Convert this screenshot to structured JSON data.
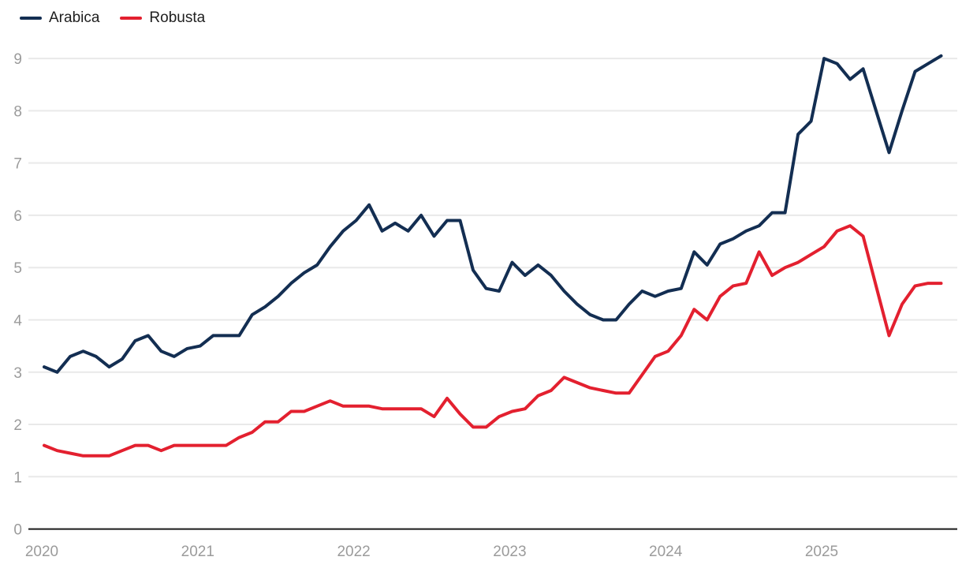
{
  "legend": {
    "items": [
      {
        "label": "Arabica",
        "color": "#132e52"
      },
      {
        "label": "Robusta",
        "color": "#e3202f"
      }
    ]
  },
  "chart_data": {
    "type": "line",
    "title": "",
    "xlabel": "",
    "ylabel": "",
    "x_start": "2020-01",
    "x_end": "2025-10",
    "x_frequency": "monthly",
    "x_ticks": [
      "2020",
      "2021",
      "2022",
      "2023",
      "2024",
      "2025"
    ],
    "y_ticks": [
      0,
      1,
      2,
      3,
      4,
      5,
      6,
      7,
      8,
      9
    ],
    "ylim": [
      0,
      9.3
    ],
    "grid": "horizontal",
    "legend_position": "top-left",
    "colors": {
      "arabica": "#132e52",
      "robusta": "#e3202f",
      "gridline": "#e9e9e9",
      "axis": "#1a1a1a",
      "tick_text": "#9b9b9b"
    },
    "series": [
      {
        "name": "Arabica",
        "color": "#132e52",
        "values": [
          3.1,
          3.0,
          3.3,
          3.4,
          3.3,
          3.1,
          3.25,
          3.6,
          3.7,
          3.4,
          3.3,
          3.45,
          3.5,
          3.7,
          3.7,
          3.7,
          4.1,
          4.25,
          4.45,
          4.7,
          4.9,
          5.05,
          5.4,
          5.7,
          5.9,
          6.2,
          5.7,
          5.85,
          5.7,
          6.0,
          5.6,
          5.9,
          5.9,
          4.95,
          4.6,
          4.55,
          5.1,
          4.85,
          5.05,
          4.85,
          4.55,
          4.3,
          4.1,
          4.0,
          4.0,
          4.3,
          4.55,
          4.45,
          4.55,
          4.6,
          5.3,
          5.05,
          5.45,
          5.55,
          5.7,
          5.8,
          6.05,
          6.05,
          7.55,
          7.8,
          9.0,
          8.9,
          8.6,
          8.8,
          8.0,
          7.2,
          8.0,
          8.75,
          8.9,
          9.05
        ]
      },
      {
        "name": "Robusta",
        "color": "#e3202f",
        "values": [
          1.6,
          1.5,
          1.45,
          1.4,
          1.4,
          1.4,
          1.5,
          1.6,
          1.6,
          1.5,
          1.6,
          1.6,
          1.6,
          1.6,
          1.6,
          1.75,
          1.85,
          2.05,
          2.05,
          2.25,
          2.25,
          2.35,
          2.45,
          2.35,
          2.35,
          2.35,
          2.3,
          2.3,
          2.3,
          2.3,
          2.15,
          2.5,
          2.2,
          1.95,
          1.95,
          2.15,
          2.25,
          2.3,
          2.55,
          2.65,
          2.9,
          2.8,
          2.7,
          2.65,
          2.6,
          2.6,
          2.95,
          3.3,
          3.4,
          3.7,
          4.2,
          4.0,
          4.45,
          4.65,
          4.7,
          5.3,
          4.85,
          5.0,
          5.1,
          5.25,
          5.4,
          5.7,
          5.8,
          5.6,
          4.65,
          3.7,
          4.3,
          4.65,
          4.7,
          4.7
        ]
      }
    ]
  }
}
